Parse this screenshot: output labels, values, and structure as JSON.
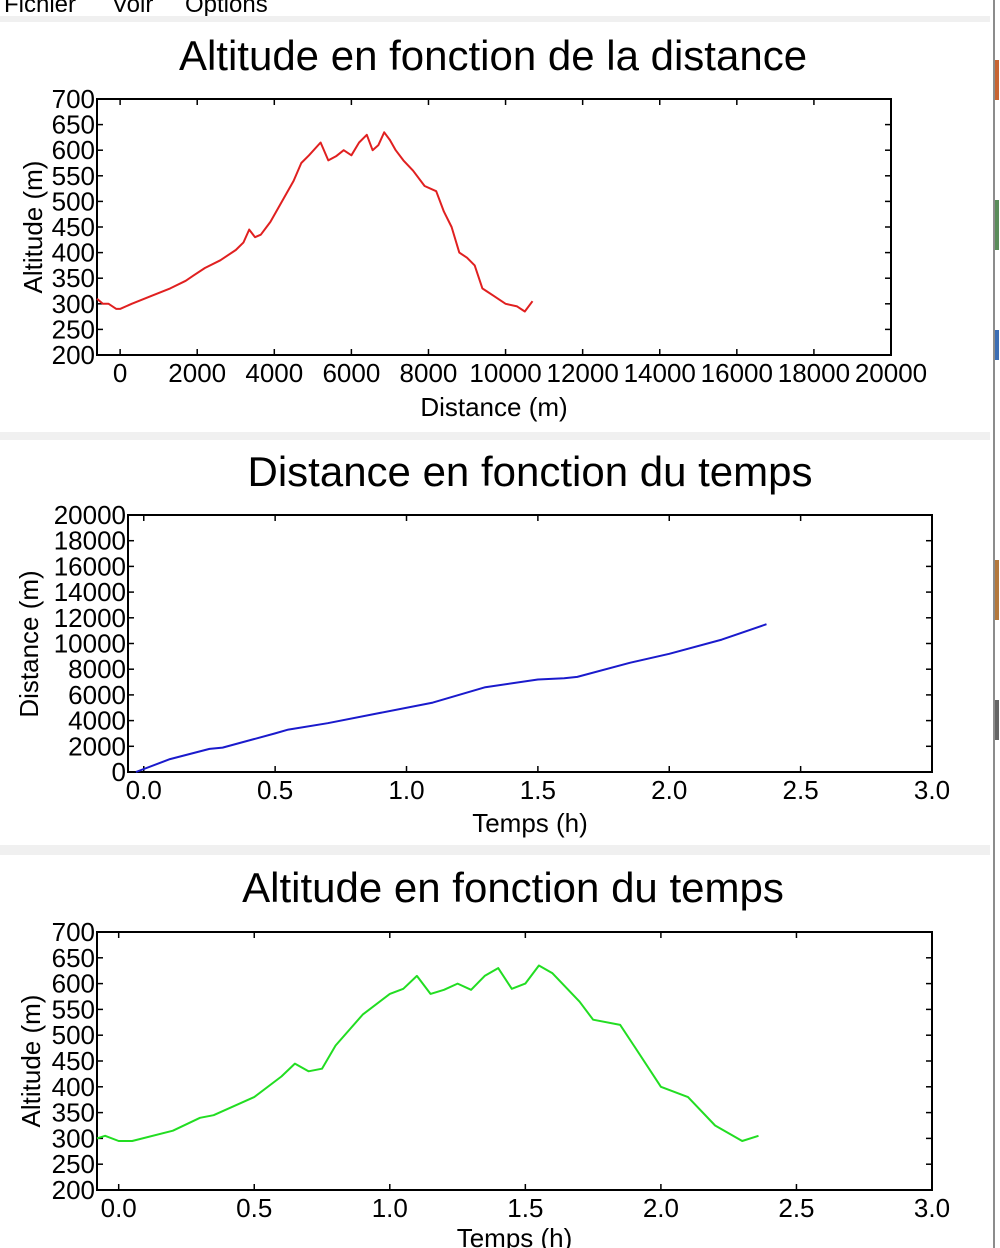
{
  "menu": [
    {
      "label": "Fichier"
    },
    {
      "label": "Voir"
    },
    {
      "label": "Options"
    }
  ],
  "chart_data": [
    {
      "type": "line",
      "title": "Altitude en fonction de la distance",
      "xlabel": "Distance (m)",
      "ylabel": "Altitude (m)",
      "xlim": [
        -600,
        20000
      ],
      "ylim": [
        200,
        700
      ],
      "xticks": [
        0,
        2000,
        4000,
        6000,
        8000,
        10000,
        12000,
        14000,
        16000,
        18000,
        20000
      ],
      "yticks": [
        200,
        250,
        300,
        350,
        400,
        450,
        500,
        550,
        600,
        650,
        700
      ],
      "grid": false,
      "color": "#e02020",
      "series": [
        {
          "x": [
            -600,
            -450,
            -300,
            -100,
            0,
            300,
            800,
            1300,
            1700,
            1900,
            2200,
            2600,
            3000,
            3200,
            3350,
            3500,
            3650,
            3900,
            4200,
            4500,
            4700,
            4900,
            5200,
            5400,
            5600,
            5800,
            6000,
            6200,
            6400,
            6550,
            6700,
            6850,
            7000,
            7150,
            7350,
            7600,
            7900,
            8200,
            8400,
            8600,
            8800,
            9000,
            9200,
            9400,
            9500,
            9700,
            10000,
            10300,
            10500,
            10700
          ],
          "y": [
            310,
            300,
            300,
            290,
            290,
            300,
            315,
            330,
            345,
            355,
            370,
            385,
            405,
            420,
            445,
            430,
            435,
            460,
            500,
            540,
            575,
            590,
            615,
            580,
            588,
            600,
            590,
            615,
            630,
            600,
            610,
            635,
            620,
            600,
            580,
            560,
            530,
            520,
            480,
            450,
            400,
            390,
            375,
            330,
            325,
            315,
            300,
            295,
            285,
            305
          ]
        }
      ]
    },
    {
      "type": "line",
      "title": "Distance en fonction du temps",
      "xlabel": "Temps (h)",
      "ylabel": "Distance (m)",
      "xlim": [
        -0.06,
        3.0
      ],
      "ylim": [
        0,
        20000
      ],
      "xticks": [
        0.0,
        0.5,
        1.0,
        1.5,
        2.0,
        2.5,
        3.0
      ],
      "xticklabels": [
        "0.0",
        "0.5",
        "1.0",
        "1.5",
        "2.0",
        "2.5",
        "3.0"
      ],
      "yticks": [
        0,
        2000,
        4000,
        6000,
        8000,
        10000,
        12000,
        14000,
        16000,
        18000,
        20000
      ],
      "grid": false,
      "color": "#1a1acc",
      "series": [
        {
          "x": [
            -0.03,
            0.1,
            0.25,
            0.3,
            0.5,
            0.55,
            0.7,
            0.9,
            1.1,
            1.3,
            1.5,
            1.6,
            1.65,
            1.85,
            2.0,
            2.2,
            2.37
          ],
          "y": [
            0,
            1000,
            1800,
            1900,
            3000,
            3300,
            3800,
            4600,
            5400,
            6600,
            7200,
            7300,
            7400,
            8500,
            9200,
            10300,
            11500
          ]
        }
      ]
    },
    {
      "type": "line",
      "title": "Altitude en fonction du temps",
      "xlabel": "Temps (h)",
      "ylabel": "Altitude (m)",
      "xlim": [
        -0.08,
        3.0
      ],
      "ylim": [
        200,
        700
      ],
      "xticks": [
        0.0,
        0.5,
        1.0,
        1.5,
        2.0,
        2.5,
        3.0
      ],
      "xticklabels": [
        "0.0",
        "0.5",
        "1.0",
        "1.5",
        "2.0",
        "2.5",
        "3.0"
      ],
      "yticks": [
        200,
        250,
        300,
        350,
        400,
        450,
        500,
        550,
        600,
        650,
        700
      ],
      "grid": false,
      "color": "#22dd22",
      "series": [
        {
          "x": [
            -0.08,
            -0.05,
            0.0,
            0.05,
            0.2,
            0.3,
            0.35,
            0.5,
            0.6,
            0.65,
            0.7,
            0.75,
            0.8,
            0.9,
            1.0,
            1.05,
            1.1,
            1.15,
            1.2,
            1.25,
            1.3,
            1.35,
            1.4,
            1.45,
            1.5,
            1.55,
            1.6,
            1.7,
            1.75,
            1.85,
            1.9,
            2.0,
            2.1,
            2.2,
            2.3,
            2.36
          ],
          "y": [
            300,
            305,
            295,
            295,
            315,
            340,
            345,
            380,
            420,
            445,
            430,
            435,
            480,
            540,
            580,
            590,
            615,
            580,
            588,
            600,
            588,
            615,
            630,
            590,
            600,
            635,
            620,
            565,
            530,
            520,
            480,
            400,
            380,
            325,
            295,
            305
          ]
        }
      ]
    }
  ]
}
